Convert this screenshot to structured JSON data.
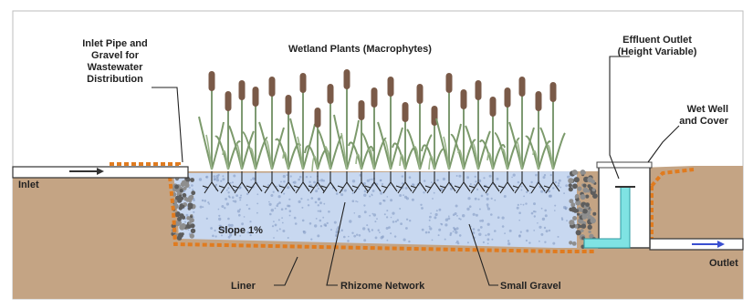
{
  "labels": {
    "inlet_pipe": [
      "Inlet Pipe and",
      "Gravel for",
      "Wastewater",
      "Distribution"
    ],
    "wetland_plants": "Wetland Plants (Macrophytes)",
    "effluent_outlet": [
      "Effluent Outlet",
      "(Height Variable)"
    ],
    "wet_well": [
      "Wet Well",
      "and Cover"
    ],
    "inlet": "Inlet",
    "slope": "Slope 1%",
    "liner": "Liner",
    "rhizome": "Rhizome Network",
    "small_gravel": "Small Gravel",
    "outlet": "Outlet"
  },
  "colors": {
    "soil": "#c4a484",
    "liner": "#e07b1f",
    "gravel_bed": "#c8d8f0",
    "stalk": "#7c9a6c",
    "cattail": "#7a5a48",
    "pipe_water": "#7fe3e3"
  }
}
